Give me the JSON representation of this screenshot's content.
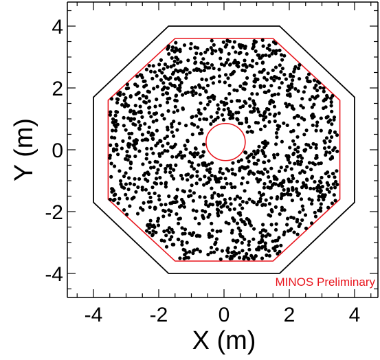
{
  "chart_data": {
    "type": "scatter",
    "title": "",
    "xlabel": "X (m)",
    "ylabel": "Y (m)",
    "xlim": [
      -4.8,
      4.8
    ],
    "ylim": [
      -4.8,
      4.8
    ],
    "x_ticks": [
      -4,
      -2,
      0,
      2,
      4
    ],
    "y_ticks": [
      -4,
      -2,
      0,
      2,
      4
    ],
    "grid": false,
    "annotation": {
      "text": "MINOS Preliminary",
      "color": "#e8141c"
    },
    "outer_octagon": {
      "color": "#000000",
      "vertices": [
        [
          -1.7,
          4.0
        ],
        [
          1.7,
          4.0
        ],
        [
          4.0,
          1.7
        ],
        [
          4.0,
          -1.7
        ],
        [
          1.7,
          -4.0
        ],
        [
          -1.7,
          -4.0
        ],
        [
          -4.0,
          -1.7
        ],
        [
          -4.0,
          1.7
        ]
      ]
    },
    "fiducial_octagon": {
      "color": "#e8141c",
      "vertices": [
        [
          -1.5,
          3.6
        ],
        [
          1.5,
          3.6
        ],
        [
          3.55,
          1.6
        ],
        [
          3.55,
          -1.6
        ],
        [
          1.5,
          -3.6
        ],
        [
          -1.5,
          -3.6
        ],
        [
          -3.55,
          -1.6
        ],
        [
          -3.55,
          1.6
        ]
      ]
    },
    "inner_hole": {
      "color": "#e8141c",
      "center": [
        0.05,
        0.25
      ],
      "radius": 0.6
    },
    "point_color": "#000000",
    "point_count": 1400
  }
}
